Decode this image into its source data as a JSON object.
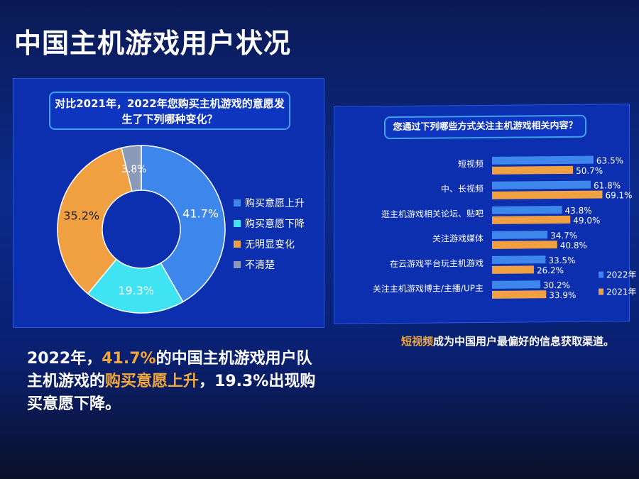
{
  "title": "中国主机游戏用户状况",
  "colors": {
    "blue": "#3d86ec",
    "cyan": "#3fe3f2",
    "orange": "#f0a040",
    "gray": "#8a9ab8",
    "highlight": "#f0a83c"
  },
  "chart_data": [
    {
      "type": "pie",
      "donut": true,
      "title": "对比2021年，2022年您购买主机游戏的意愿发生了下列哪种变化？",
      "categories": [
        "购买意愿上升",
        "购买意愿下降",
        "无明显变化",
        "不清楚"
      ],
      "values": [
        41.7,
        19.3,
        35.2,
        3.8
      ],
      "labels": [
        "41.7%",
        "19.3%",
        "35.2%",
        "3.8%"
      ],
      "legend": "right"
    },
    {
      "type": "bar",
      "orientation": "horizontal",
      "title": "您通过下列哪些方式关注主机游戏相关内容？",
      "categories": [
        "短视频",
        "中、长视频",
        "逛主机游戏相关论坛、贴吧",
        "关注游戏媒体",
        "在云游戏平台玩主机游戏",
        "关注主机游戏博主/主播/UP主"
      ],
      "series": [
        {
          "name": "2022年",
          "values": [
            63.5,
            61.8,
            43.8,
            34.7,
            33.5,
            30.2
          ],
          "labels": [
            "63.5%",
            "61.8%",
            "43.8%",
            "34.7%",
            "33.5%",
            "30.2%"
          ]
        },
        {
          "name": "2021年",
          "values": [
            50.7,
            69.1,
            49.0,
            40.8,
            26.2,
            33.9
          ],
          "labels": [
            "50.7%",
            "69.1%",
            "49.0%",
            "40.8%",
            "26.2%",
            "33.9%"
          ]
        }
      ],
      "legend": "bottom-right"
    }
  ],
  "bottom_left": {
    "p1": "2022年，",
    "p2": "41.7%",
    "p3": "的中国主机游戏用户队主机游戏的",
    "p4": "购买意愿上升",
    "p5": "，19.3%出现购买意愿下降。"
  },
  "bottom_right": {
    "p1": "短视频",
    "p2": "成为中国用户最偏好的信息获取渠道。"
  }
}
